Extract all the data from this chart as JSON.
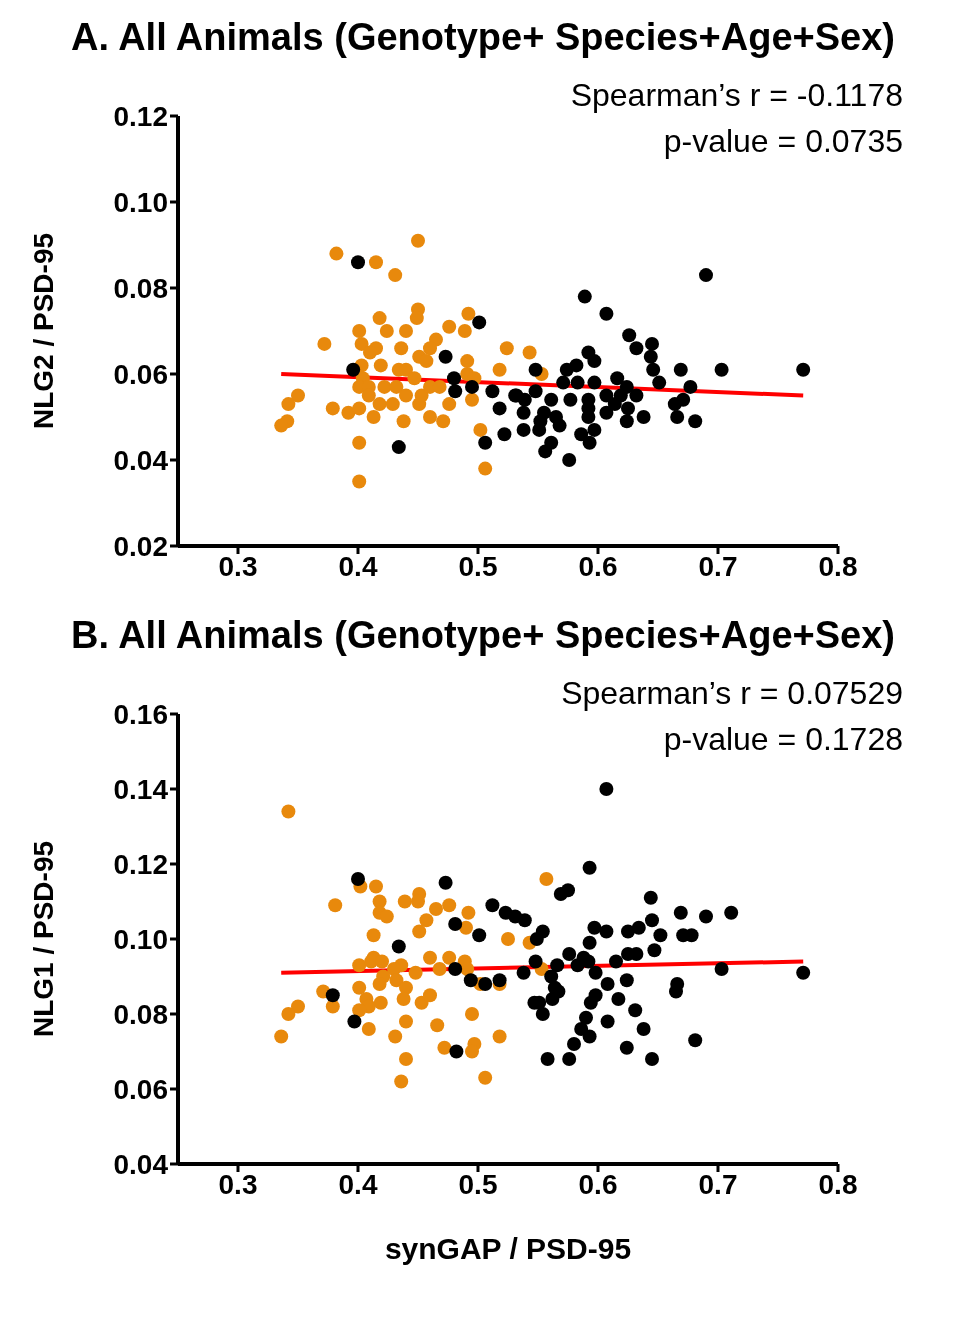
{
  "chart_data": [
    {
      "type": "scatter",
      "title": "A. All Animals (Genotype+ Species+Age+Sex)",
      "ylabel": "NLG2 / PSD-95",
      "annotations": [
        "Spearman’s r = -0.1178",
        "p-value = 0.0735"
      ],
      "xlim": [
        0.25,
        0.8
      ],
      "xticks": [
        0.3,
        0.4,
        0.5,
        0.6,
        0.7,
        0.8
      ],
      "ylim": [
        0.02,
        0.12
      ],
      "yticks": [
        {
          "value": 0.02,
          "label": "0.02"
        },
        {
          "value": 0.04,
          "label": "0.04"
        },
        {
          "value": 0.06,
          "label": "0.06"
        },
        {
          "value": 0.08,
          "label": "0.08"
        },
        {
          "value": 0.1,
          "label": "0.10"
        },
        {
          "value": 0.12,
          "label": "0.12"
        }
      ],
      "series": [
        {
          "marker": "circle",
          "color": "#e8890c",
          "x": [
            0.45,
            0.382,
            0.415,
            0.431,
            0.45,
            0.449,
            0.418,
            0.401,
            0.424,
            0.44,
            0.476,
            0.492,
            0.489,
            0.372,
            0.403,
            0.415,
            0.41,
            0.436,
            0.465,
            0.46,
            0.451,
            0.457,
            0.491,
            0.524,
            0.543,
            0.403,
            0.419,
            0.434,
            0.44,
            0.447,
            0.518,
            0.553,
            0.491,
            0.497,
            0.404,
            0.401,
            0.409,
            0.409,
            0.422,
            0.432,
            0.44,
            0.453,
            0.46,
            0.468,
            0.35,
            0.342,
            0.379,
            0.392,
            0.401,
            0.418,
            0.429,
            0.451,
            0.476,
            0.495,
            0.413,
            0.438,
            0.46,
            0.471,
            0.341,
            0.336,
            0.502,
            0.401,
            0.506,
            0.401
          ],
          "values": [
            0.091,
            0.088,
            0.086,
            0.083,
            0.075,
            0.073,
            0.073,
            0.07,
            0.07,
            0.07,
            0.071,
            0.074,
            0.07,
            0.067,
            0.067,
            0.066,
            0.065,
            0.066,
            0.068,
            0.066,
            0.064,
            0.063,
            0.063,
            0.066,
            0.065,
            0.062,
            0.062,
            0.061,
            0.061,
            0.059,
            0.061,
            0.06,
            0.06,
            0.059,
            0.059,
            0.057,
            0.057,
            0.055,
            0.057,
            0.057,
            0.055,
            0.055,
            0.057,
            0.057,
            0.055,
            0.053,
            0.052,
            0.051,
            0.052,
            0.053,
            0.053,
            0.053,
            0.053,
            0.054,
            0.05,
            0.049,
            0.05,
            0.049,
            0.049,
            0.048,
            0.047,
            0.044,
            0.038,
            0.035
          ]
        },
        {
          "marker": "circle",
          "color": "#000000",
          "x": [
            0.4,
            0.501,
            0.473,
            0.396,
            0.48,
            0.481,
            0.495,
            0.434,
            0.512,
            0.518,
            0.506,
            0.522,
            0.538,
            0.538,
            0.548,
            0.548,
            0.531,
            0.561,
            0.555,
            0.551,
            0.561,
            0.556,
            0.69,
            0.589,
            0.607,
            0.626,
            0.632,
            0.645,
            0.644,
            0.646,
            0.669,
            0.703,
            0.771,
            0.592,
            0.597,
            0.574,
            0.582,
            0.571,
            0.583,
            0.597,
            0.616,
            0.624,
            0.651,
            0.677,
            0.532,
            0.539,
            0.577,
            0.592,
            0.607,
            0.619,
            0.632,
            0.671,
            0.664,
            0.565,
            0.592,
            0.607,
            0.614,
            0.625,
            0.592,
            0.552,
            0.568,
            0.586,
            0.597,
            0.593,
            0.576,
            0.624,
            0.638,
            0.666,
            0.681
          ],
          "values": [
            0.086,
            0.072,
            0.064,
            0.061,
            0.059,
            0.056,
            0.057,
            0.043,
            0.056,
            0.052,
            0.044,
            0.046,
            0.051,
            0.047,
            0.061,
            0.056,
            0.055,
            0.054,
            0.051,
            0.047,
            0.044,
            0.042,
            0.083,
            0.078,
            0.074,
            0.069,
            0.066,
            0.067,
            0.064,
            0.061,
            0.061,
            0.061,
            0.061,
            0.065,
            0.063,
            0.061,
            0.062,
            0.058,
            0.058,
            0.058,
            0.059,
            0.057,
            0.058,
            0.057,
            0.055,
            0.054,
            0.054,
            0.054,
            0.055,
            0.055,
            0.055,
            0.054,
            0.053,
            0.05,
            0.052,
            0.051,
            0.053,
            0.052,
            0.05,
            0.049,
            0.048,
            0.046,
            0.047,
            0.044,
            0.04,
            0.049,
            0.05,
            0.05,
            0.049
          ]
        },
        {
          "type": "line",
          "marker": "none",
          "color": "#ff0000",
          "x": [
            0.336,
            0.771
          ],
          "values": [
            0.06,
            0.055
          ]
        }
      ]
    },
    {
      "type": "scatter",
      "title": "B. All Animals (Genotype+ Species+Age+Sex)",
      "xlabel": "synGAP / PSD-95",
      "ylabel": "NLG1 / PSD-95",
      "annotations": [
        "Spearman’s r = 0.07529",
        "p-value = 0.1728"
      ],
      "xlim": [
        0.25,
        0.8
      ],
      "xticks": [
        0.3,
        0.4,
        0.5,
        0.6,
        0.7,
        0.8
      ],
      "ylim": [
        0.04,
        0.16
      ],
      "yticks": [
        {
          "value": 0.04,
          "label": "0.04"
        },
        {
          "value": 0.06,
          "label": "0.06"
        },
        {
          "value": 0.08,
          "label": "0.08"
        },
        {
          "value": 0.1,
          "label": "0.10"
        },
        {
          "value": 0.12,
          "label": "0.12"
        },
        {
          "value": 0.14,
          "label": "0.14"
        },
        {
          "value": 0.16,
          "label": "0.16"
        }
      ],
      "series": [
        {
          "marker": "circle",
          "color": "#e8890c",
          "x": [
            0.342,
            0.557,
            0.402,
            0.415,
            0.381,
            0.418,
            0.439,
            0.451,
            0.45,
            0.476,
            0.465,
            0.418,
            0.424,
            0.492,
            0.457,
            0.49,
            0.451,
            0.413,
            0.525,
            0.543,
            0.413,
            0.401,
            0.411,
            0.42,
            0.436,
            0.43,
            0.46,
            0.476,
            0.489,
            0.448,
            0.468,
            0.491,
            0.553,
            0.421,
            0.418,
            0.432,
            0.44,
            0.401,
            0.371,
            0.379,
            0.407,
            0.419,
            0.409,
            0.401,
            0.438,
            0.453,
            0.46,
            0.502,
            0.518,
            0.35,
            0.342,
            0.495,
            0.44,
            0.409,
            0.466,
            0.336,
            0.431,
            0.518,
            0.472,
            0.497,
            0.495,
            0.44,
            0.436,
            0.506
          ],
          "values": [
            0.134,
            0.116,
            0.114,
            0.114,
            0.109,
            0.11,
            0.11,
            0.112,
            0.11,
            0.109,
            0.108,
            0.107,
            0.106,
            0.107,
            0.105,
            0.103,
            0.102,
            0.101,
            0.1,
            0.099,
            0.095,
            0.093,
            0.094,
            0.094,
            0.093,
            0.092,
            0.095,
            0.095,
            0.094,
            0.091,
            0.092,
            0.092,
            0.092,
            0.09,
            0.088,
            0.089,
            0.087,
            0.087,
            0.086,
            0.082,
            0.084,
            0.083,
            0.082,
            0.081,
            0.084,
            0.083,
            0.085,
            0.088,
            0.088,
            0.082,
            0.08,
            0.08,
            0.078,
            0.076,
            0.077,
            0.074,
            0.074,
            0.074,
            0.071,
            0.072,
            0.07,
            0.068,
            0.062,
            0.063
          ]
        },
        {
          "marker": "circle",
          "color": "#000000",
          "x": [
            0.4,
            0.473,
            0.512,
            0.523,
            0.531,
            0.539,
            0.481,
            0.501,
            0.434,
            0.554,
            0.549,
            0.481,
            0.494,
            0.506,
            0.518,
            0.538,
            0.548,
            0.379,
            0.397,
            0.482,
            0.558,
            0.551,
            0.554,
            0.607,
            0.593,
            0.575,
            0.569,
            0.644,
            0.669,
            0.69,
            0.711,
            0.645,
            0.652,
            0.671,
            0.678,
            0.597,
            0.607,
            0.625,
            0.634,
            0.593,
            0.647,
            0.625,
            0.632,
            0.576,
            0.588,
            0.592,
            0.615,
            0.583,
            0.566,
            0.598,
            0.561,
            0.703,
            0.771,
            0.624,
            0.608,
            0.564,
            0.567,
            0.666,
            0.665,
            0.598,
            0.594,
            0.617,
            0.562,
            0.547,
            0.59,
            0.631,
            0.608,
            0.586,
            0.638,
            0.593,
            0.58,
            0.681,
            0.624,
            0.576,
            0.645
          ],
          "values": [
            0.116,
            0.115,
            0.109,
            0.107,
            0.106,
            0.105,
            0.104,
            0.101,
            0.098,
            0.102,
            0.1,
            0.092,
            0.089,
            0.088,
            0.089,
            0.091,
            0.094,
            0.085,
            0.078,
            0.07,
            0.068,
            0.083,
            0.08,
            0.14,
            0.119,
            0.113,
            0.112,
            0.111,
            0.107,
            0.106,
            0.107,
            0.105,
            0.101,
            0.101,
            0.101,
            0.103,
            0.102,
            0.102,
            0.103,
            0.099,
            0.097,
            0.096,
            0.096,
            0.096,
            0.095,
            0.094,
            0.094,
            0.093,
            0.093,
            0.091,
            0.09,
            0.092,
            0.091,
            0.089,
            0.088,
            0.087,
            0.086,
            0.088,
            0.086,
            0.085,
            0.083,
            0.084,
            0.084,
            0.083,
            0.079,
            0.081,
            0.078,
            0.076,
            0.076,
            0.074,
            0.072,
            0.073,
            0.071,
            0.068,
            0.068
          ]
        },
        {
          "type": "line",
          "marker": "none",
          "color": "#ff0000",
          "x": [
            0.336,
            0.771
          ],
          "values": [
            0.091,
            0.094
          ]
        }
      ]
    }
  ]
}
